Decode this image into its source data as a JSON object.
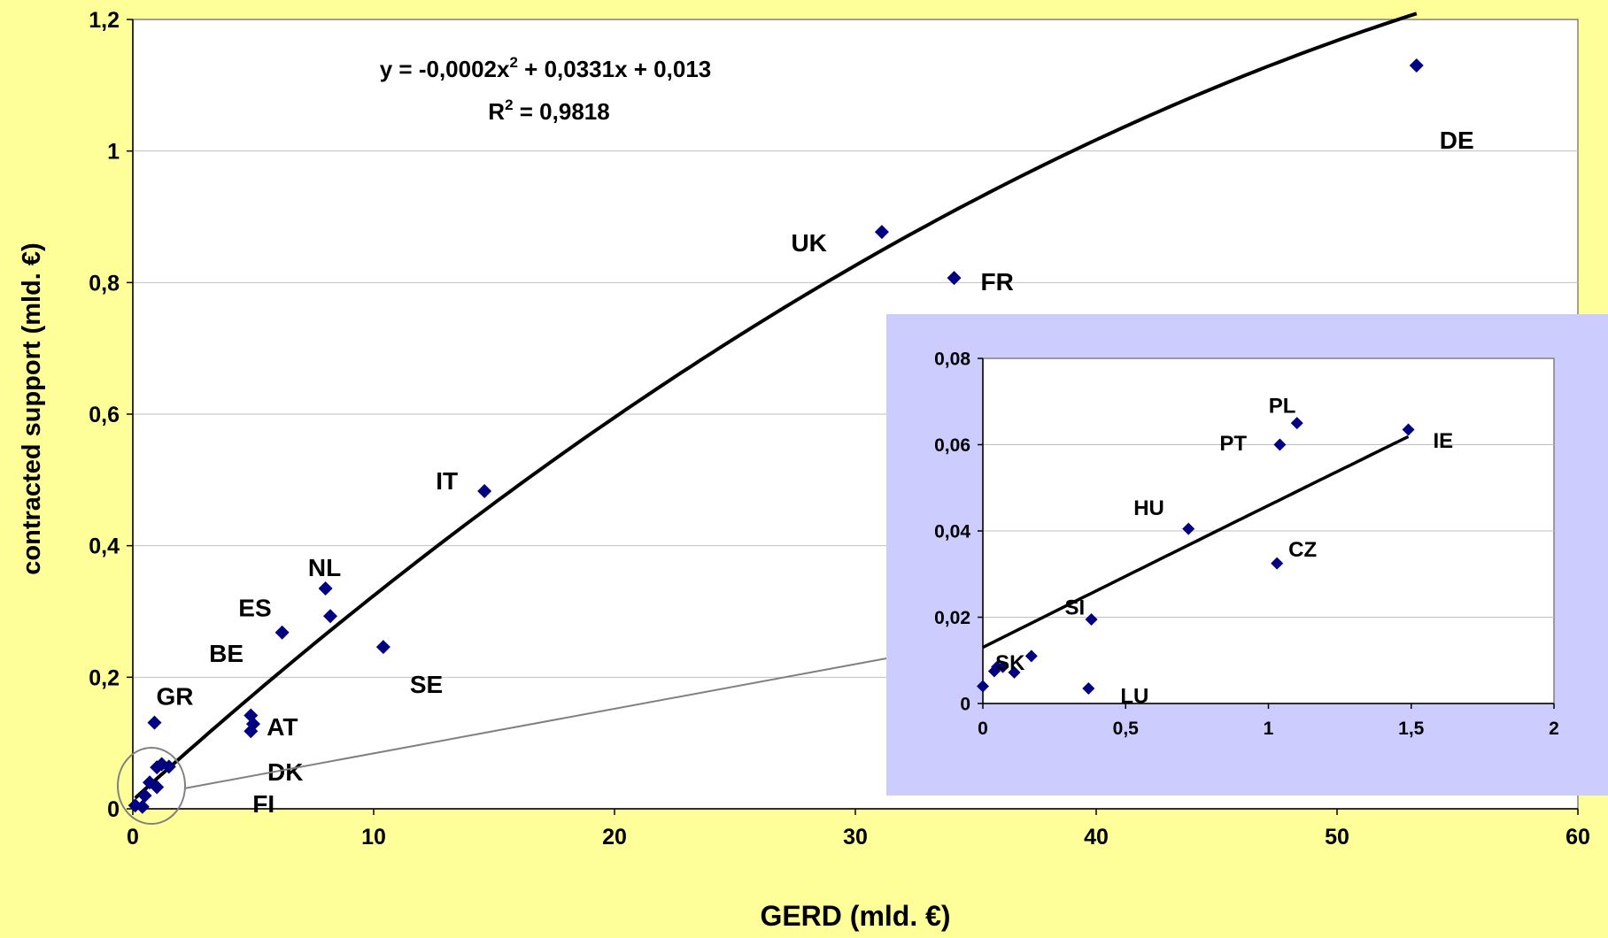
{
  "colors": {
    "background": "#FFFF99",
    "plot_background": "#FFFFFF",
    "inset_panel": "#CCCCFF",
    "marker": "#000080",
    "trendline": "#000000",
    "gridline": "#C0C0C0",
    "callout": "#808080"
  },
  "chart_data": [
    {
      "type": "scatter",
      "xlabel": "GERD (mld. €)",
      "ylabel": "contracted support (mld. €)",
      "xlim": [
        0,
        60
      ],
      "ylim": [
        0,
        1.2
      ],
      "x_ticks": [
        "0",
        "10",
        "20",
        "30",
        "40",
        "50",
        "60"
      ],
      "y_ticks": [
        "0",
        "0,2",
        "0,4",
        "0,6",
        "0,8",
        "1",
        "1,2"
      ],
      "grid": "horizontal",
      "marker": "diamond",
      "trendline": {
        "type": "polynomial",
        "coefficients": [
          -0.0002,
          0.0331,
          0.013
        ],
        "equation": {
          "prefix": "y = -0,0002x",
          "sup": "2",
          "suffix": " + 0,0331x + 0,013"
        },
        "r2": {
          "prefix": "R",
          "sup": "2",
          "suffix": " = 0,9818"
        }
      },
      "points": [
        {
          "label": "DE",
          "x": 53.3,
          "y": 1.13
        },
        {
          "label": "UK",
          "x": 31.1,
          "y": 0.877
        },
        {
          "label": "FR",
          "x": 34.1,
          "y": 0.807
        },
        {
          "label": "IT",
          "x": 14.6,
          "y": 0.483
        },
        {
          "label": "NL",
          "x": 8.0,
          "y": 0.335
        },
        {
          "label": "ES",
          "x": 6.2,
          "y": 0.268
        },
        {
          "label": "BE",
          "x": 8.2,
          "y": 0.293
        },
        {
          "label": "SE",
          "x": 10.4,
          "y": 0.246
        },
        {
          "label": "GR",
          "x": 0.9,
          "y": 0.131
        },
        {
          "label": "AT",
          "x": 4.9,
          "y": 0.142
        },
        {
          "label": "DK",
          "x": 5.0,
          "y": 0.129
        },
        {
          "label": "FI",
          "x": 4.9,
          "y": 0.118
        },
        {
          "label": "",
          "x": 1.0,
          "y": 0.063
        },
        {
          "label": "",
          "x": 1.2,
          "y": 0.068
        },
        {
          "label": "",
          "x": 1.5,
          "y": 0.064
        },
        {
          "label": "",
          "x": 0.7,
          "y": 0.04
        },
        {
          "label": "",
          "x": 1.0,
          "y": 0.033
        },
        {
          "label": "",
          "x": 0.5,
          "y": 0.02
        },
        {
          "label": "",
          "x": 0.1,
          "y": 0.005
        },
        {
          "label": "",
          "x": 0.4,
          "y": 0.003
        }
      ]
    },
    {
      "type": "scatter",
      "xlim": [
        0,
        2
      ],
      "ylim": [
        0,
        0.08
      ],
      "x_ticks": [
        "0",
        "0,5",
        "1",
        "1,5",
        "2"
      ],
      "y_ticks": [
        "0",
        "0,02",
        "0,04",
        "0,06",
        "0,08"
      ],
      "grid": "horizontal",
      "marker": "diamond",
      "trendline": {
        "type": "polynomial",
        "coefficients": [
          -0.0002,
          0.0331,
          0.013
        ]
      },
      "points": [
        {
          "label": "PL",
          "x": 1.1,
          "y": 0.065
        },
        {
          "label": "PT",
          "x": 1.04,
          "y": 0.06
        },
        {
          "label": "IE",
          "x": 1.49,
          "y": 0.0635
        },
        {
          "label": "HU",
          "x": 0.72,
          "y": 0.0405
        },
        {
          "label": "CZ",
          "x": 1.03,
          "y": 0.0325
        },
        {
          "label": "SI",
          "x": 0.38,
          "y": 0.0195
        },
        {
          "label": "SK",
          "x": 0.05,
          "y": 0.0085
        },
        {
          "label": "LU",
          "x": 0.37,
          "y": 0.0035
        },
        {
          "label": "",
          "x": 0.0,
          "y": 0.004
        },
        {
          "label": "",
          "x": 0.04,
          "y": 0.0075
        },
        {
          "label": "",
          "x": 0.07,
          "y": 0.0085
        },
        {
          "label": "",
          "x": 0.11,
          "y": 0.0072
        },
        {
          "label": "",
          "x": 0.17,
          "y": 0.011
        }
      ]
    }
  ]
}
